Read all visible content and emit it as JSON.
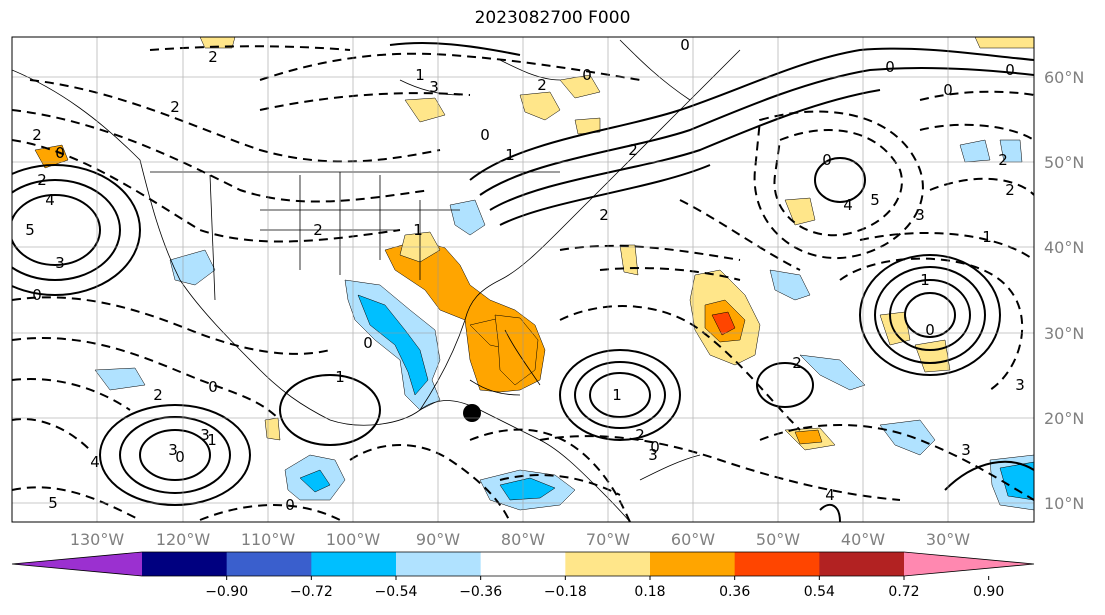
{
  "title": "2023082700 F000",
  "lon_labels": [
    "130°W",
    "120°W",
    "110°W",
    "100°W",
    "90°W",
    "80°W",
    "70°W",
    "60°W",
    "50°W",
    "40°W",
    "30°W"
  ],
  "lat_labels": [
    "60°N",
    "50°N",
    "40°N",
    "30°N",
    "20°N",
    "10°N"
  ],
  "colorbar": {
    "ticks": [
      "−0.90",
      "−0.72",
      "−0.54",
      "−0.36",
      "−0.18",
      "0.18",
      "0.36",
      "0.54",
      "0.72",
      "0.90"
    ],
    "colors": [
      "#9b30d0",
      "#000080",
      "#3a5fcd",
      "#00bfff",
      "#b0e2ff",
      "#ffffff",
      "#ffe68a",
      "#ffa500",
      "#ff4500",
      "#b22222",
      "#ff88b0"
    ]
  },
  "contour_labels": [
    "2",
    "0",
    "2",
    "4",
    "5",
    "3",
    "0",
    "2",
    "2",
    "3",
    "0",
    "1",
    "2",
    "0",
    "2",
    "1",
    "2",
    "0",
    "1",
    "0",
    "2",
    "3",
    "1",
    "0",
    "3",
    "4",
    "5",
    "0",
    "1",
    "2",
    "3",
    "0",
    "4",
    "5",
    "3",
    "2",
    "2",
    "1",
    "1",
    "0",
    "0",
    "0",
    "0",
    "2",
    "4",
    "3",
    "3",
    "0",
    "1",
    "2",
    "0"
  ]
}
